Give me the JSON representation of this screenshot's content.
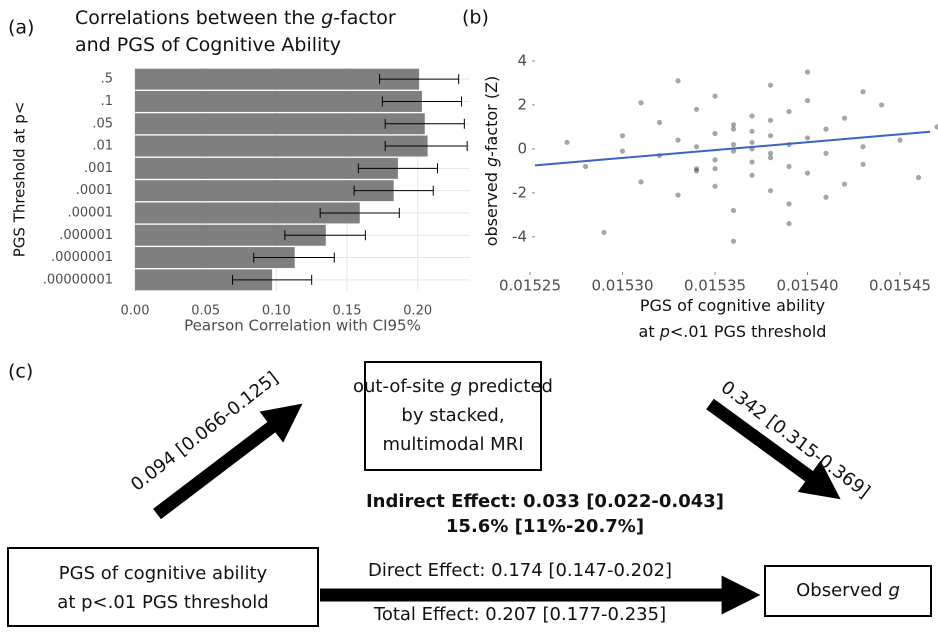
{
  "chart_data": [
    {
      "type": "bar",
      "orientation": "horizontal",
      "panel_label": "(a)",
      "title_lines": [
        [
          "Correlations between the ",
          "g",
          "-factor"
        ],
        [
          "and PGS of Cognitive Ability"
        ]
      ],
      "x_label": "Pearson Correlation with CI95%",
      "y_label": "PGS Threshold at p<",
      "categories": [
        ".5",
        ".1",
        ".05",
        ".01",
        ".001",
        ".0001",
        ".00001",
        ".000001",
        ".0000001",
        ".00000001"
      ],
      "values": [
        0.201,
        0.203,
        0.205,
        0.207,
        0.186,
        0.183,
        0.159,
        0.135,
        0.113,
        0.097
      ],
      "ci_low": [
        0.173,
        0.175,
        0.177,
        0.177,
        0.158,
        0.155,
        0.131,
        0.106,
        0.084,
        0.069
      ],
      "ci_high": [
        0.229,
        0.231,
        0.233,
        0.235,
        0.214,
        0.211,
        0.187,
        0.163,
        0.141,
        0.125
      ],
      "color": "#7f7f7f",
      "xlim": [
        0,
        0.237
      ],
      "xticks": [
        {
          "value": 0,
          "label": "0.00"
        },
        0.05,
        {
          "value": 0.1,
          "label": "0.10"
        },
        0.15,
        {
          "value": 0.2,
          "label": "0.20"
        }
      ],
      "grid": true
    },
    {
      "type": "scatter",
      "panel_label": "(b)",
      "x_label_lines": [
        [
          "PGS of cognitive ability"
        ],
        [
          "at ",
          "p",
          "<.01 PGS threshold"
        ]
      ],
      "y_label": [
        "observed ",
        "g",
        "-factor (Z)"
      ],
      "x": [
        0.01528,
        0.0153,
        0.01531,
        0.01532,
        0.01532,
        0.01533,
        0.01533,
        0.01534,
        0.01534,
        0.01534,
        0.01535,
        0.01535,
        0.01535,
        0.01535,
        0.01536,
        0.01536,
        0.01536,
        0.01536,
        0.01536,
        0.01537,
        0.01537,
        0.01537,
        0.01537,
        0.01537,
        0.01538,
        0.01538,
        0.01538,
        0.01538,
        0.01538,
        0.01539,
        0.01539,
        0.01539,
        0.01539,
        0.0154,
        0.0154,
        0.0154,
        0.01541,
        0.01541,
        0.01542,
        0.01542,
        0.01543,
        0.01543,
        0.01544,
        0.01545,
        0.01546,
        0.01529,
        0.01527,
        0.01547,
        0.01533,
        0.0154,
        0.01536,
        0.01539,
        0.01531,
        0.01534,
        0.01537,
        0.01538,
        0.01535,
        0.01541,
        0.0153,
        0.01543
      ],
      "values": [
        -0.8,
        0.6,
        -1.5,
        1.2,
        -0.3,
        0.4,
        -2.1,
        1.8,
        -0.9,
        0.1,
        2.4,
        -0.5,
        0.7,
        -1.7,
        0.2,
        -0.1,
        1.1,
        -2.8,
        0.9,
        -0.6,
        0.3,
        1.5,
        -1.2,
        0,
        2.9,
        -0.4,
        0.6,
        -1.9,
        1.3,
        0.2,
        -0.8,
        1.7,
        -3.4,
        0.5,
        -1.1,
        2.2,
        -0.2,
        0.9,
        -1.6,
        1.4,
        0.1,
        -0.7,
        2,
        0.4,
        -1.3,
        -3.8,
        0.3,
        1,
        3.1,
        3.5,
        -4.2,
        -2.5,
        2.1,
        -1,
        0.8,
        -0.2,
        -0.9,
        -2.2,
        -0.1,
        2.6
      ],
      "color": "#000000",
      "trend": {
        "x": [
          0.0152527,
          0.0154662
        ],
        "values": [
          -0.75,
          0.78
        ],
        "color": "#3b62c4"
      },
      "xlim": [
        0.0152527,
        0.0154662
      ],
      "ylim": [
        -5.6,
        4.5
      ],
      "xticks": [
        0.01525,
        {
          "value": 0.0153,
          "label": "0.01530"
        },
        0.01535,
        {
          "value": 0.0154,
          "label": "0.01540"
        },
        0.01545
      ],
      "yticks": [
        -4,
        -2,
        0,
        2,
        4
      ],
      "grid": false
    }
  ],
  "diagram": {
    "panel_label": "(c)",
    "mediator": [
      [
        "out-of-site ",
        "g",
        " predicted"
      ],
      [
        "by stacked,"
      ],
      [
        "multimodal MRI"
      ]
    ],
    "predictor": [
      [
        "PGS of cognitive ability"
      ],
      [
        "at p<.01 PGS threshold"
      ]
    ],
    "outcome": [
      [
        "Observed ",
        "g"
      ]
    ],
    "a_path": "0.094 [0.066-0.125]",
    "b_path": "0.342 [0.315-0.369]",
    "indirect": [
      "Indirect Effect: 0.033 [0.022-0.043]",
      "15.6% [11%-20.7%]"
    ],
    "direct": "Direct Effect: 0.174 [0.147-0.202]",
    "total": "Total Effect: 0.207 [0.177-0.235]"
  }
}
